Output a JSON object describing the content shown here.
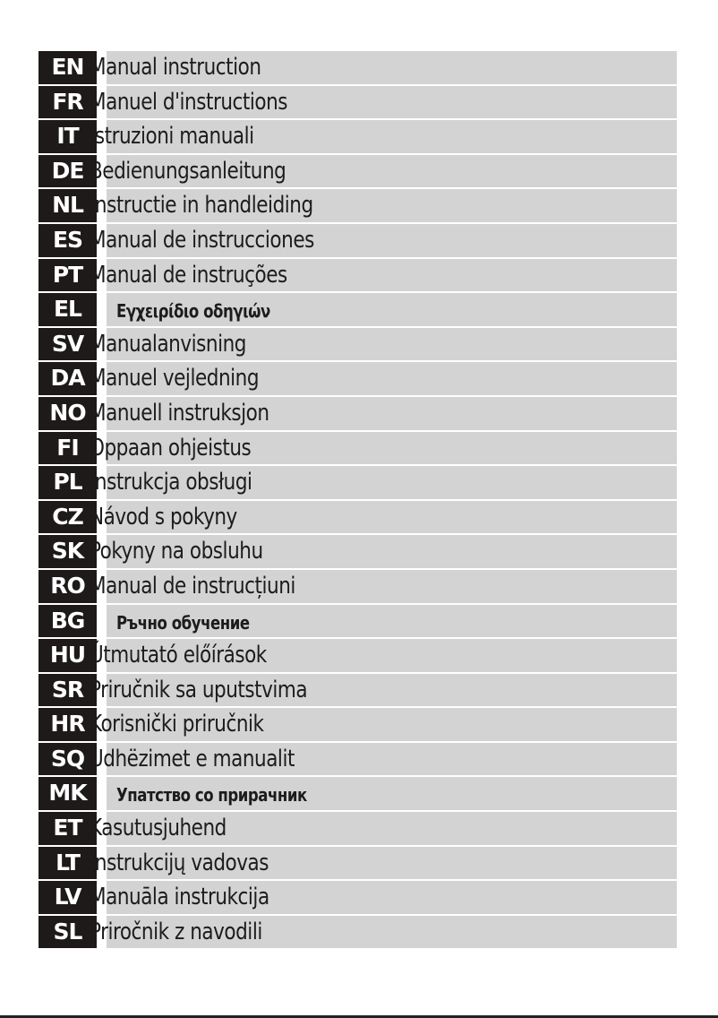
{
  "languages": [
    {
      "code": "EN",
      "text": "Manual instruction"
    },
    {
      "code": "FR",
      "text": "Manuel d'instructions"
    },
    {
      "code": "IT",
      "text": "Istruzioni manuali"
    },
    {
      "code": "DE",
      "text": "Bedienungsanleitung"
    },
    {
      "code": "NL",
      "text": "Instructie in handleiding"
    },
    {
      "code": "ES",
      "text": "Manual de instrucciones"
    },
    {
      "code": "PT",
      "text": "Manual de instruções"
    },
    {
      "code": "EL",
      "text": "Εγχειρίδιο οδηγιών",
      "small": true
    },
    {
      "code": "SV",
      "text": "Manualanvisning"
    },
    {
      "code": "DA",
      "text": "Manuel vejledning"
    },
    {
      "code": "NO",
      "text": "Manuell instruksjon"
    },
    {
      "code": "FI",
      "text": "Oppaan ohjeistus"
    },
    {
      "code": "PL",
      "text": "Instrukcja obsługi"
    },
    {
      "code": "CZ",
      "text": "Návod s pokyny"
    },
    {
      "code": "SK",
      "text": "Pokyny na obsluhu"
    },
    {
      "code": "RO",
      "text": "Manual de instrucțiuni"
    },
    {
      "code": "BG",
      "text": "Ръчно обучение",
      "small": true
    },
    {
      "code": "HU",
      "text": "Útmutató előírások"
    },
    {
      "code": "SR",
      "text": "Priručnik sa uputstvima"
    },
    {
      "code": "HR",
      "text": "Korisnički priručnik"
    },
    {
      "code": "SQ",
      "text": "Udhëzimet e manualit"
    },
    {
      "code": "MK",
      "text": "Упатство со прирачник",
      "small": true
    },
    {
      "code": "ET",
      "text": "Kasutusjuhend"
    },
    {
      "code": "LT",
      "text": "Instrukcijų vadovas"
    },
    {
      "code": "LV",
      "text": "Manuāla instrukcija"
    },
    {
      "code": "SL",
      "text": "Priročnik z navodili"
    }
  ],
  "colors": {
    "code_bg": "#1e1a1a",
    "bar_bg": "#d3d3d3",
    "text": "#1c1c1c"
  }
}
